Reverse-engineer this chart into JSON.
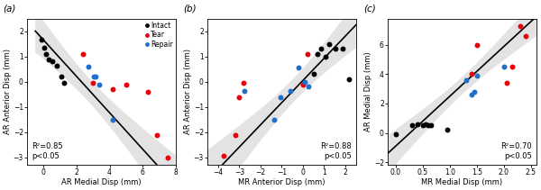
{
  "panel_a": {
    "label": "(a)",
    "xlabel": "AR Medial Disp (mm)",
    "ylabel": "AR Anterior Disp (mm)",
    "r2": "R²=0.85",
    "pval": "p<0.05",
    "r2_loc": "lower left",
    "xlim": [
      -1,
      8
    ],
    "ylim": [
      -3.3,
      2.5
    ],
    "xticks": [
      0,
      2,
      4,
      6,
      8
    ],
    "yticks": [
      -3,
      -2,
      -1,
      0,
      1,
      2
    ],
    "black_x": [
      -0.1,
      0.05,
      0.15,
      0.3,
      0.55,
      0.8,
      1.05,
      1.25
    ],
    "black_y": [
      1.65,
      1.35,
      1.1,
      0.9,
      0.8,
      0.65,
      0.2,
      -0.05
    ],
    "red_x": [
      2.4,
      3.0,
      4.2,
      5.0,
      6.3,
      6.85,
      7.5
    ],
    "red_y": [
      1.1,
      -0.05,
      -0.3,
      -0.1,
      -0.4,
      -2.1,
      -3.0
    ],
    "blue_x": [
      2.7,
      3.05,
      3.15,
      3.35,
      4.2
    ],
    "blue_y": [
      0.6,
      0.2,
      0.2,
      -0.1,
      -1.5
    ],
    "slope": -0.72,
    "intercept": 1.65,
    "fit_x": [
      -0.5,
      8.0
    ],
    "has_legend": true
  },
  "panel_b": {
    "label": "(b)",
    "xlabel": "MR Anterior Disp (mm)",
    "ylabel": "AR Anterior Disp (mm)",
    "r2": "R²=0.88",
    "pval": "p<0.05",
    "r2_loc": "lower right",
    "xlim": [
      -4.5,
      2.5
    ],
    "ylim": [
      -3.3,
      2.5
    ],
    "xticks": [
      -4,
      -3,
      -2,
      -1,
      0,
      1,
      2
    ],
    "yticks": [
      -3,
      -2,
      -1,
      0,
      1,
      2
    ],
    "black_x": [
      0.5,
      0.7,
      0.85,
      1.05,
      1.25,
      1.55,
      1.85,
      2.15
    ],
    "black_y": [
      0.3,
      1.1,
      1.3,
      1.0,
      1.5,
      1.3,
      1.3,
      0.1
    ],
    "red_x": [
      -3.75,
      -3.2,
      -3.0,
      -2.8,
      0.0,
      0.2
    ],
    "red_y": [
      -2.95,
      -2.1,
      -0.6,
      -0.05,
      -0.1,
      1.1
    ],
    "blue_x": [
      -2.75,
      -1.35,
      -1.05,
      -0.6,
      -0.2,
      0.1,
      0.25
    ],
    "blue_y": [
      -0.35,
      -1.5,
      -0.6,
      -0.35,
      0.55,
      0.0,
      -0.2
    ],
    "slope": 0.88,
    "intercept": 0.05,
    "fit_x": [
      -4.5,
      2.5
    ],
    "has_legend": false
  },
  "panel_c": {
    "label": "(c)",
    "xlabel": "MR Medial Disp (mm)",
    "ylabel": "AR Medial Disp (mm)",
    "r2": "R²=0.70",
    "pval": "p<0.05",
    "r2_loc": "lower right",
    "xlim": [
      -0.15,
      2.6
    ],
    "ylim": [
      -2.2,
      7.8
    ],
    "xticks": [
      0,
      0.5,
      1.0,
      1.5,
      2.0,
      2.5
    ],
    "yticks": [
      -2,
      0,
      2,
      4,
      6
    ],
    "black_x": [
      0.0,
      0.3,
      0.4,
      0.5,
      0.55,
      0.6,
      0.65,
      0.95
    ],
    "black_y": [
      -0.1,
      0.5,
      0.6,
      0.5,
      0.6,
      0.5,
      0.55,
      0.2
    ],
    "red_x": [
      1.4,
      1.5,
      2.05,
      2.15,
      2.3,
      2.4
    ],
    "red_y": [
      4.0,
      6.0,
      3.4,
      4.5,
      7.3,
      6.6
    ],
    "blue_x": [
      1.3,
      1.4,
      1.45,
      1.5,
      2.0
    ],
    "blue_y": [
      3.6,
      2.6,
      2.8,
      3.9,
      4.5
    ],
    "slope": 3.4,
    "intercept": -0.9,
    "fit_x": [
      -0.15,
      2.6
    ],
    "has_legend": false
  },
  "colors": {
    "black": "#000000",
    "red": "#e8000b",
    "blue": "#1e6fcc",
    "fit_line": "#000000",
    "ci_color": "#b0b0b0",
    "bg_color": "#ffffff"
  },
  "legend": {
    "labels": [
      "Intact",
      "Tear",
      "Repair"
    ],
    "colors": [
      "#000000",
      "#e8000b",
      "#1e6fcc"
    ]
  },
  "marker_size": 18,
  "line_width": 1.2,
  "ci_alpha": 0.35
}
